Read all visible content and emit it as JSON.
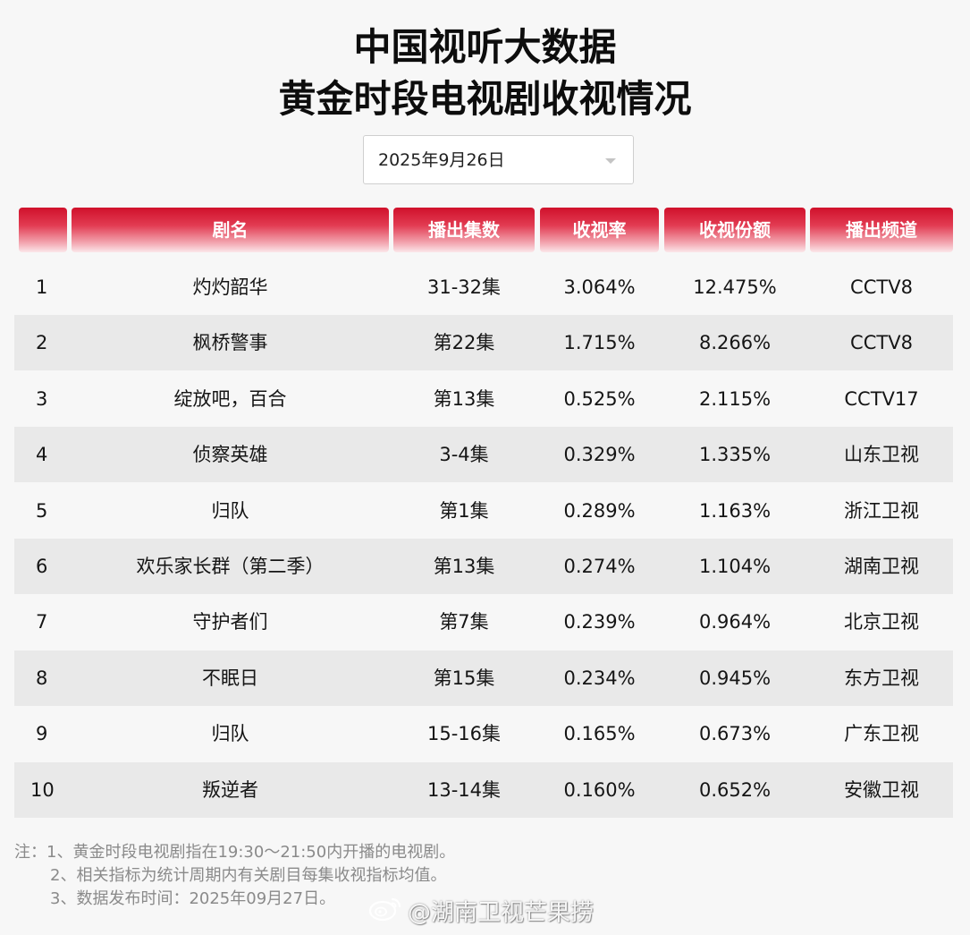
{
  "title": {
    "line1": "中国视听大数据",
    "line2": "黄金时段电视剧收视情况"
  },
  "date_select": {
    "value": "2025年9月26日"
  },
  "table": {
    "headers": [
      "",
      "剧名",
      "播出集数",
      "收视率",
      "收视份额",
      "播出频道"
    ],
    "rows": [
      {
        "rank": "1",
        "name": "灼灼韶华",
        "episodes": "31-32集",
        "rating": "3.064%",
        "share": "12.475%",
        "channel": "CCTV8"
      },
      {
        "rank": "2",
        "name": "枫桥警事",
        "episodes": "第22集",
        "rating": "1.715%",
        "share": "8.266%",
        "channel": "CCTV8"
      },
      {
        "rank": "3",
        "name": "绽放吧，百合",
        "episodes": "第13集",
        "rating": "0.525%",
        "share": "2.115%",
        "channel": "CCTV17"
      },
      {
        "rank": "4",
        "name": "侦察英雄",
        "episodes": "3-4集",
        "rating": "0.329%",
        "share": "1.335%",
        "channel": "山东卫视"
      },
      {
        "rank": "5",
        "name": "归队",
        "episodes": "第1集",
        "rating": "0.289%",
        "share": "1.163%",
        "channel": "浙江卫视"
      },
      {
        "rank": "6",
        "name": "欢乐家长群（第二季）",
        "episodes": "第13集",
        "rating": "0.274%",
        "share": "1.104%",
        "channel": "湖南卫视"
      },
      {
        "rank": "7",
        "name": "守护者们",
        "episodes": "第7集",
        "rating": "0.239%",
        "share": "0.964%",
        "channel": "北京卫视"
      },
      {
        "rank": "8",
        "name": "不眠日",
        "episodes": "第15集",
        "rating": "0.234%",
        "share": "0.945%",
        "channel": "东方卫视"
      },
      {
        "rank": "9",
        "name": "归队",
        "episodes": "15-16集",
        "rating": "0.165%",
        "share": "0.673%",
        "channel": "广东卫视"
      },
      {
        "rank": "10",
        "name": "叛逆者",
        "episodes": "13-14集",
        "rating": "0.160%",
        "share": "0.652%",
        "channel": "安徽卫视"
      }
    ]
  },
  "notes": {
    "line1": "注：1、黄金时段电视剧指在19:30～21:50内开播的电视剧。",
    "line2": "2、相关指标为统计周期内有关剧目每集收视指标均值。",
    "line3": "3、数据发布时间：2025年09月27日。"
  },
  "watermark": {
    "text": "@湖南卫视芒果捞",
    "icon": "weibo-icon"
  },
  "colors": {
    "header_red": "#d0112b",
    "row_shade": "#e9e9e9",
    "background": "#f7f7f7",
    "note_gray": "#8a8a8a"
  }
}
